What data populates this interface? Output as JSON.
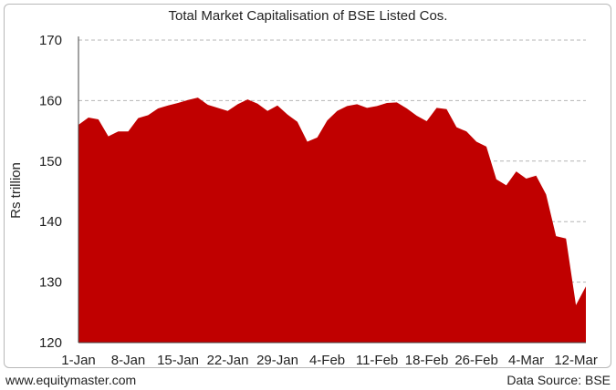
{
  "footer": {
    "website": "www.equitymaster.com",
    "source": "Data Source: BSE"
  },
  "chart_data": {
    "type": "area",
    "title": "Total Market Capitalisation of BSE Listed Cos.",
    "xlabel": "",
    "ylabel": "Rs trillion",
    "ylim": [
      120,
      170
    ],
    "yticks": [
      120,
      130,
      140,
      150,
      160,
      170
    ],
    "grid": "horizontal dashed",
    "color": "#c00000",
    "x_tick_labels": [
      {
        "label": "1-Jan",
        "index": 0
      },
      {
        "label": "8-Jan",
        "index": 5
      },
      {
        "label": "15-Jan",
        "index": 10
      },
      {
        "label": "22-Jan",
        "index": 15
      },
      {
        "label": "29-Jan",
        "index": 20
      },
      {
        "label": "4-Feb",
        "index": 25
      },
      {
        "label": "11-Feb",
        "index": 30
      },
      {
        "label": "18-Feb",
        "index": 35
      },
      {
        "label": "26-Feb",
        "index": 40
      },
      {
        "label": "4-Mar",
        "index": 45
      },
      {
        "label": "12-Mar",
        "index": 50
      }
    ],
    "series": [
      {
        "values": [
          156.0,
          157.2,
          156.9,
          154.1,
          154.9,
          154.9,
          157.1,
          157.6,
          158.7,
          159.2,
          159.6,
          160.1,
          160.5,
          159.3,
          158.8,
          158.3,
          159.4,
          160.2,
          159.5,
          158.3,
          159.2,
          157.7,
          156.5,
          153.2,
          153.9,
          156.7,
          158.3,
          159.1,
          159.4,
          158.8,
          159.1,
          159.6,
          159.7,
          158.7,
          157.5,
          156.6,
          158.8,
          158.6,
          155.6,
          154.9,
          153.2,
          152.4,
          147.0,
          146.0,
          148.3,
          147.1,
          147.6,
          144.5,
          137.6,
          137.2,
          126.2,
          129.3
        ]
      }
    ]
  }
}
